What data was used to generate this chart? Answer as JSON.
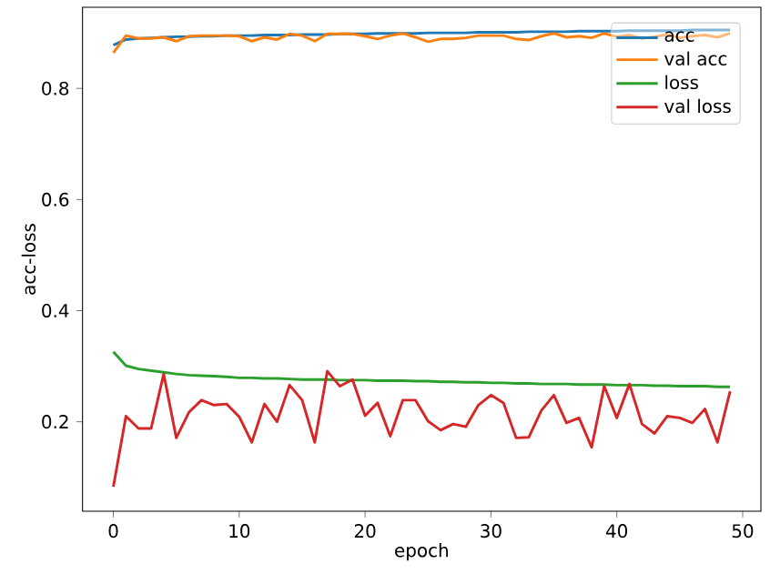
{
  "chart_data": {
    "type": "line",
    "xlabel": "epoch",
    "ylabel": "acc-loss",
    "x": [
      0,
      1,
      2,
      3,
      4,
      5,
      6,
      7,
      8,
      9,
      10,
      11,
      12,
      13,
      14,
      15,
      16,
      17,
      18,
      19,
      20,
      21,
      22,
      23,
      24,
      25,
      26,
      27,
      28,
      29,
      30,
      31,
      32,
      33,
      34,
      35,
      36,
      37,
      38,
      39,
      40,
      41,
      42,
      43,
      44,
      45,
      46,
      47,
      48,
      49
    ],
    "series": [
      {
        "name": "acc",
        "color": "#1f77b4",
        "values": [
          0.878,
          0.888,
          0.89,
          0.891,
          0.892,
          0.893,
          0.893,
          0.894,
          0.894,
          0.895,
          0.895,
          0.895,
          0.896,
          0.896,
          0.896,
          0.897,
          0.897,
          0.897,
          0.898,
          0.898,
          0.898,
          0.899,
          0.899,
          0.899,
          0.899,
          0.9,
          0.9,
          0.9,
          0.9,
          0.901,
          0.901,
          0.901,
          0.901,
          0.902,
          0.902,
          0.902,
          0.902,
          0.903,
          0.903,
          0.903,
          0.903,
          0.904,
          0.904,
          0.904,
          0.904,
          0.904,
          0.905,
          0.905,
          0.905,
          0.905
        ]
      },
      {
        "name": "val acc",
        "color": "#ff7f0e",
        "values": [
          0.864,
          0.895,
          0.89,
          0.89,
          0.892,
          0.885,
          0.894,
          0.895,
          0.895,
          0.895,
          0.894,
          0.885,
          0.892,
          0.888,
          0.898,
          0.895,
          0.885,
          0.898,
          0.898,
          0.898,
          0.894,
          0.889,
          0.895,
          0.899,
          0.892,
          0.884,
          0.889,
          0.889,
          0.891,
          0.895,
          0.895,
          0.895,
          0.889,
          0.887,
          0.894,
          0.899,
          0.892,
          0.894,
          0.891,
          0.899,
          0.893,
          0.896,
          0.89,
          0.893,
          0.897,
          0.891,
          0.894,
          0.896,
          0.892,
          0.899
        ]
      },
      {
        "name": "loss",
        "color": "#2ca02c",
        "values": [
          0.326,
          0.301,
          0.295,
          0.292,
          0.289,
          0.286,
          0.284,
          0.283,
          0.282,
          0.281,
          0.279,
          0.279,
          0.278,
          0.278,
          0.277,
          0.276,
          0.276,
          0.276,
          0.275,
          0.275,
          0.275,
          0.274,
          0.274,
          0.274,
          0.273,
          0.273,
          0.272,
          0.272,
          0.271,
          0.271,
          0.27,
          0.27,
          0.269,
          0.269,
          0.268,
          0.268,
          0.268,
          0.267,
          0.267,
          0.267,
          0.266,
          0.266,
          0.266,
          0.265,
          0.265,
          0.264,
          0.264,
          0.264,
          0.263,
          0.263
        ]
      },
      {
        "name": "val loss",
        "color": "#d62728",
        "values": [
          0.083,
          0.21,
          0.188,
          0.188,
          0.286,
          0.171,
          0.217,
          0.239,
          0.23,
          0.232,
          0.209,
          0.163,
          0.232,
          0.2,
          0.266,
          0.239,
          0.163,
          0.291,
          0.264,
          0.276,
          0.211,
          0.234,
          0.174,
          0.239,
          0.239,
          0.201,
          0.185,
          0.196,
          0.191,
          0.23,
          0.248,
          0.234,
          0.171,
          0.172,
          0.22,
          0.248,
          0.198,
          0.207,
          0.154,
          0.264,
          0.207,
          0.268,
          0.196,
          0.179,
          0.21,
          0.207,
          0.198,
          0.223,
          0.163,
          0.255
        ]
      }
    ],
    "xlim": [
      -2.45,
      51.45
    ],
    "ylim": [
      0.039,
      0.946
    ],
    "xticks": [
      0,
      10,
      20,
      30,
      40,
      50
    ],
    "yticks": [
      0.2,
      0.4,
      0.6,
      0.8
    ],
    "legend": "top right",
    "grid": false,
    "marker": "none",
    "line_style": "solid"
  }
}
